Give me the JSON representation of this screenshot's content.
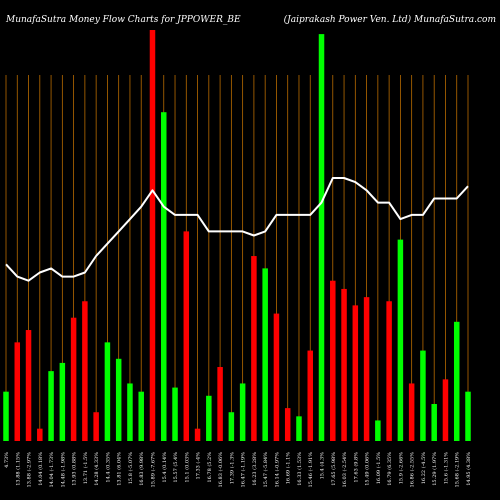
{
  "header": {
    "left_title": "MunafaSutra  Money Flow  Charts for JPPOWER_BE",
    "right_title": "(Jaiprakash Power Ven. Ltd) MunafaSutra.com"
  },
  "colors": {
    "background": "#000000",
    "up": "#00ff00",
    "down": "#ff0000",
    "gridline": "#b86b00",
    "line": "#ffffff",
    "text": "#ffffff"
  },
  "chart_data": {
    "type": "bar",
    "grid": "vertical",
    "categories": [
      "4.73%",
      "13.88 (1.15%",
      "13.88 (-2.97%",
      "14.04 (0.18%",
      "14.04 (-1.73%",
      "14.48 (-1.98%",
      "13.93 (0.88%",
      "13.71 (-1.5%",
      "14.28 (4.33%",
      "14.4 (0.35%",
      "13.81 (6.04%",
      "15.8 (-5.07%",
      "16.83 (9.98%",
      "15.89 (-7.67%",
      "15.4 (0.14%",
      "15.57 (5.4%",
      "15.1 (0.03%",
      "17.33 (-4%",
      "16.78 (5.2%",
      "16.83 (-0.06%",
      "17.39 (-1.3%",
      "16.47 (-1.19%",
      "16.23 (3.28%",
      "15.47 (-5.84%",
      "16.14 (-0.97%",
      "16.69 (-1.1%",
      "16.33 (1.53%",
      "15.46 (-1.91%",
      "15.4 (4.3%",
      "17.65 (5.98%",
      "16.03 (-2.54%",
      "17.63 (9.8%",
      "15.49 (0.06%",
      "16.09 (-1.5%",
      "16.79 (6.35%",
      "15.9 (-2.66%",
      "16.86 (-2.55%",
      "16.22 (-4.5%",
      "15.29 (1.97%",
      "15.6 (-1.31%",
      "15.68 (-2.19%",
      "14.95 (4.38%"
    ],
    "direction": [
      "up",
      "down",
      "down",
      "down",
      "up",
      "up",
      "down",
      "down",
      "down",
      "up",
      "up",
      "up",
      "up",
      "down",
      "up",
      "up",
      "down",
      "down",
      "up",
      "down",
      "up",
      "up",
      "down",
      "up",
      "down",
      "down",
      "up",
      "down",
      "up",
      "down",
      "down",
      "down",
      "down",
      "up",
      "down",
      "up",
      "down",
      "up",
      "up",
      "down",
      "up",
      "up"
    ],
    "values": [
      12,
      24,
      27,
      3,
      17,
      19,
      30,
      34,
      7,
      24,
      20,
      14,
      12,
      100,
      80,
      13,
      51,
      3,
      11,
      18,
      7,
      14,
      45,
      42,
      31,
      8,
      6,
      22,
      99,
      39,
      37,
      33,
      35,
      5,
      34,
      49,
      14,
      22,
      9,
      15,
      29,
      12
    ],
    "series": [
      {
        "values": [
          43,
          40,
          39,
          41,
          42,
          40,
          40,
          41,
          45,
          48,
          51,
          54,
          57,
          61,
          57,
          55,
          55,
          55,
          51,
          51,
          51,
          51,
          50,
          51,
          55,
          55,
          55,
          55,
          58,
          64,
          64,
          63,
          61,
          58,
          58,
          54,
          55,
          55,
          59,
          59,
          59,
          62
        ]
      }
    ],
    "ylim": [
      0,
      100
    ]
  }
}
